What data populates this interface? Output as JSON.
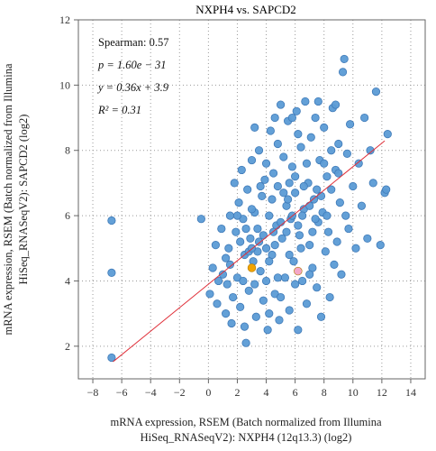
{
  "chart_data": {
    "type": "scatter",
    "title": "NXPH4 vs. SAPCD2",
    "xlabel_lines": [
      "mRNA expression, RSEM (Batch normalized from Illumina",
      "HiSeq_RNASeqV2): NXPH4 (12q13.3) (log2)"
    ],
    "ylabel_lines": [
      "mRNA expression, RSEM (Batch normalized from Illumina",
      "HiSeq_RNASeqV2): SAPCD2 (log2)"
    ],
    "xlim": [
      -9,
      15
    ],
    "ylim": [
      1,
      12
    ],
    "x_ticks": [
      -8,
      -6,
      -4,
      -2,
      0,
      2,
      4,
      6,
      8,
      10,
      12,
      14
    ],
    "y_ticks": [
      2,
      4,
      6,
      8,
      10,
      12
    ],
    "grid": true,
    "stats": {
      "spearman": "Spearman: 0.57",
      "p": "p = 1.60e − 31",
      "equation": "y = 0.36x + 3.9",
      "r2": "R² = 0.31"
    },
    "regression": {
      "slope": 0.36,
      "intercept": 3.9,
      "x_range": [
        -6.6,
        12.2
      ]
    },
    "point_color": "#5b9bd5",
    "point_edge": "#3f7ab8",
    "line_color": "#e0303a",
    "highlight_points": [
      {
        "x": 3.0,
        "y": 4.4,
        "color": "#f2a400"
      },
      {
        "x": 6.2,
        "y": 4.3,
        "color": "#f4a6c8"
      }
    ],
    "points": [
      [
        -6.7,
        5.85
      ],
      [
        -6.7,
        4.25
      ],
      [
        -6.7,
        1.65
      ],
      [
        -0.5,
        5.9
      ],
      [
        0.1,
        3.6
      ],
      [
        0.3,
        4.4
      ],
      [
        0.6,
        3.3
      ],
      [
        0.7,
        4.0
      ],
      [
        0.5,
        5.1
      ],
      [
        1.0,
        4.2
      ],
      [
        1.2,
        3.0
      ],
      [
        1.3,
        3.9
      ],
      [
        1.4,
        5.0
      ],
      [
        1.5,
        4.5
      ],
      [
        1.6,
        2.7
      ],
      [
        1.7,
        3.5
      ],
      [
        1.8,
        7.0
      ],
      [
        1.9,
        5.5
      ],
      [
        2.0,
        4.1
      ],
      [
        2.1,
        6.4
      ],
      [
        2.2,
        3.2
      ],
      [
        2.3,
        7.4
      ],
      [
        2.4,
        5.9
      ],
      [
        2.5,
        4.8
      ],
      [
        2.6,
        2.1
      ],
      [
        2.7,
        6.8
      ],
      [
        2.8,
        3.7
      ],
      [
        2.9,
        5.3
      ],
      [
        3.0,
        7.7
      ],
      [
        3.1,
        4.6
      ],
      [
        3.2,
        6.1
      ],
      [
        3.3,
        2.9
      ],
      [
        3.4,
        5.6
      ],
      [
        3.5,
        8.0
      ],
      [
        3.6,
        4.3
      ],
      [
        3.7,
        6.6
      ],
      [
        3.8,
        3.4
      ],
      [
        3.9,
        7.1
      ],
      [
        4.0,
        5.0
      ],
      [
        4.1,
        2.5
      ],
      [
        4.2,
        6.0
      ],
      [
        4.3,
        8.6
      ],
      [
        4.4,
        4.8
      ],
      [
        4.5,
        7.3
      ],
      [
        4.6,
        3.6
      ],
      [
        4.7,
        5.7
      ],
      [
        4.8,
        6.9
      ],
      [
        4.9,
        2.8
      ],
      [
        5.0,
        9.4
      ],
      [
        5.1,
        5.3
      ],
      [
        5.2,
        7.8
      ],
      [
        5.3,
        4.1
      ],
      [
        5.4,
        6.3
      ],
      [
        5.5,
        8.9
      ],
      [
        5.6,
        3.1
      ],
      [
        5.7,
        5.9
      ],
      [
        5.8,
        7.5
      ],
      [
        5.9,
        4.6
      ],
      [
        6.0,
        6.7
      ],
      [
        6.1,
        9.2
      ],
      [
        6.2,
        2.5
      ],
      [
        6.3,
        5.4
      ],
      [
        6.4,
        8.1
      ],
      [
        6.5,
        4.0
      ],
      [
        6.6,
        6.2
      ],
      [
        6.7,
        9.5
      ],
      [
        6.8,
        3.3
      ],
      [
        6.9,
        7.0
      ],
      [
        7.0,
        5.1
      ],
      [
        7.1,
        8.4
      ],
      [
        7.2,
        4.4
      ],
      [
        7.3,
        6.5
      ],
      [
        7.4,
        9.0
      ],
      [
        7.5,
        3.8
      ],
      [
        7.6,
        5.8
      ],
      [
        7.7,
        7.7
      ],
      [
        7.8,
        2.9
      ],
      [
        7.9,
        6.1
      ],
      [
        8.0,
        8.7
      ],
      [
        8.1,
        4.9
      ],
      [
        8.2,
        7.2
      ],
      [
        8.3,
        5.5
      ],
      [
        8.4,
        3.5
      ],
      [
        8.5,
        6.8
      ],
      [
        8.6,
        9.3
      ],
      [
        8.7,
        4.5
      ],
      [
        8.8,
        7.4
      ],
      [
        8.9,
        5.2
      ],
      [
        9.0,
        8.2
      ],
      [
        9.1,
        6.4
      ],
      [
        9.2,
        4.2
      ],
      [
        9.3,
        10.4
      ],
      [
        9.4,
        10.8
      ],
      [
        9.5,
        6.0
      ],
      [
        9.6,
        7.9
      ],
      [
        9.7,
        5.6
      ],
      [
        9.8,
        8.8
      ],
      [
        10.0,
        6.9
      ],
      [
        10.2,
        5.0
      ],
      [
        10.4,
        7.6
      ],
      [
        10.6,
        6.3
      ],
      [
        10.8,
        9.0
      ],
      [
        11.0,
        5.3
      ],
      [
        11.2,
        8.0
      ],
      [
        11.4,
        7.0
      ],
      [
        11.6,
        9.8
      ],
      [
        11.9,
        5.1
      ],
      [
        12.2,
        6.7
      ],
      [
        12.4,
        8.5
      ],
      [
        12.3,
        6.8
      ],
      [
        2.2,
        5.2
      ],
      [
        2.6,
        5.6
      ],
      [
        3.4,
        4.9
      ],
      [
        3.8,
        5.4
      ],
      [
        4.2,
        4.6
      ],
      [
        4.6,
        5.1
      ],
      [
        5.0,
        5.8
      ],
      [
        5.4,
        5.5
      ],
      [
        5.8,
        6.0
      ],
      [
        6.2,
        5.7
      ],
      [
        6.6,
        6.9
      ],
      [
        7.0,
        6.3
      ],
      [
        7.4,
        5.9
      ],
      [
        7.8,
        6.6
      ],
      [
        8.2,
        6.0
      ],
      [
        3.0,
        6.2
      ],
      [
        3.6,
        6.9
      ],
      [
        4.4,
        6.5
      ],
      [
        5.2,
        6.7
      ],
      [
        6.0,
        7.2
      ],
      [
        6.8,
        7.6
      ],
      [
        4.0,
        7.6
      ],
      [
        4.8,
        8.2
      ],
      [
        5.6,
        7.0
      ],
      [
        2.4,
        4.0
      ],
      [
        2.8,
        4.9
      ],
      [
        3.2,
        3.9
      ],
      [
        4.0,
        4.0
      ],
      [
        4.8,
        4.1
      ],
      [
        5.6,
        4.8
      ],
      [
        6.4,
        5.0
      ],
      [
        7.2,
        5.5
      ],
      [
        1.5,
        6.0
      ],
      [
        2.0,
        6.0
      ],
      [
        3.0,
        5.0
      ],
      [
        3.5,
        5.2
      ],
      [
        4.5,
        5.5
      ],
      [
        5.5,
        6.5
      ],
      [
        6.5,
        6.0
      ],
      [
        7.5,
        6.8
      ],
      [
        8.0,
        7.6
      ],
      [
        8.5,
        8.0
      ],
      [
        9.0,
        7.3
      ],
      [
        4.2,
        3.0
      ],
      [
        5.0,
        3.5
      ],
      [
        6.0,
        3.9
      ],
      [
        7.0,
        4.2
      ],
      [
        2.5,
        2.6
      ],
      [
        1.2,
        4.7
      ],
      [
        0.9,
        5.6
      ],
      [
        6.2,
        8.5
      ],
      [
        5.8,
        9.0
      ],
      [
        7.6,
        9.5
      ],
      [
        8.8,
        9.4
      ],
      [
        3.2,
        8.7
      ],
      [
        4.6,
        9.0
      ]
    ]
  }
}
